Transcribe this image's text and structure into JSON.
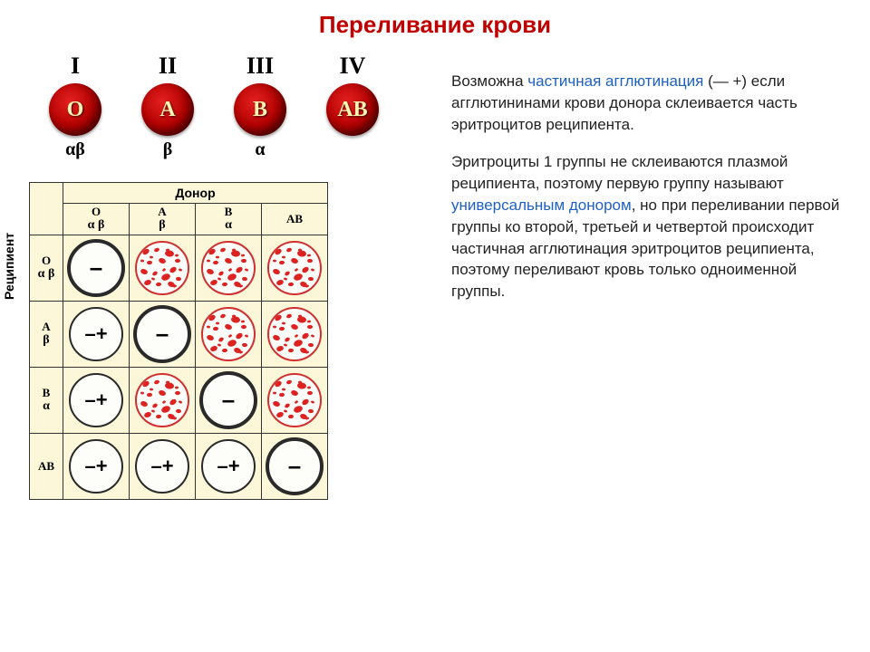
{
  "title": "Переливание крови",
  "blood_types": [
    {
      "roman": "I",
      "letter": "O",
      "greek": "αβ"
    },
    {
      "roman": "II",
      "letter": "A",
      "greek": "β"
    },
    {
      "roman": "III",
      "letter": "B",
      "greek": "α"
    },
    {
      "roman": "IV",
      "letter": "AB",
      "greek": ""
    }
  ],
  "table": {
    "donor_label": "Донор",
    "recipient_label": "Реципиент",
    "col_heads": [
      {
        "top": "O",
        "sub": "α β"
      },
      {
        "top": "A",
        "sub": "β"
      },
      {
        "top": "B",
        "sub": "α"
      },
      {
        "top": "AB",
        "sub": ""
      }
    ],
    "row_heads": [
      {
        "top": "O",
        "sub": "α β"
      },
      {
        "top": "A",
        "sub": "β"
      },
      {
        "top": "B",
        "sub": "α"
      },
      {
        "top": "AB",
        "sub": ""
      }
    ],
    "cells": [
      [
        "none",
        "full",
        "full",
        "full"
      ],
      [
        "partial",
        "none",
        "full",
        "full"
      ],
      [
        "partial",
        "full",
        "none",
        "full"
      ],
      [
        "partial",
        "partial",
        "partial",
        "none"
      ]
    ],
    "symbols": {
      "none": "–",
      "partial": "–+",
      "full": ""
    }
  },
  "paragraphs": {
    "p1_a": "Возможна ",
    "p1_blue": "частичная агглютинация",
    "p1_b": " (— +) если агглютининами крови донора склеивается часть эритроцитов реципиента.",
    "p2_a": "Эритроциты 1 группы не склеиваются плазмой реципиента, поэтому первую группу называют ",
    "p2_blue": "универсальным донором",
    "p2_b": ", но при переливании первой группы ко второй, третьей и четвертой происходит частичная агглютинация эритроцитов реципиента, поэтому переливают кровь только одноименной группы."
  },
  "colors": {
    "title": "#c00000",
    "highlight": "#1f60c4",
    "table_bg": "#fbf7d8",
    "cell_bg": "#fdfdf9",
    "speckle": "#d22",
    "ball_gradient": [
      "#e52020",
      "#b10000",
      "#5a0000"
    ]
  }
}
